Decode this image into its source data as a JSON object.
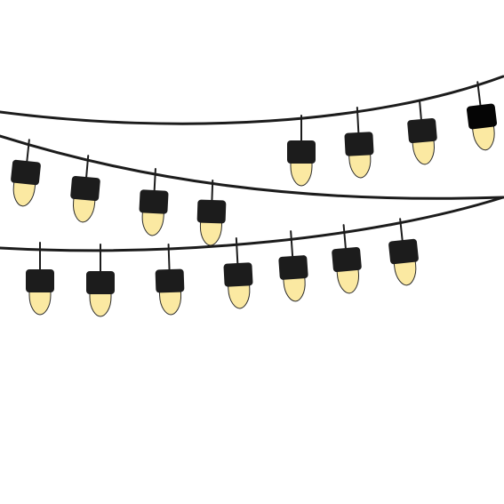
{
  "illustration": {
    "subject": "string-lights-icon",
    "colors": {
      "background": "#ffffff",
      "wire": "#1c1c1c",
      "socket": "#1c1c1c",
      "socket_dark": "#050505",
      "bulb": "#fbe9a2",
      "bulb_outline": "#2a2a2a"
    },
    "strands": [
      {
        "name": "upper-strand",
        "bulb_count": 4
      },
      {
        "name": "middle-strand",
        "bulb_count": 4
      },
      {
        "name": "lower-strand",
        "bulb_count": 7
      }
    ]
  }
}
